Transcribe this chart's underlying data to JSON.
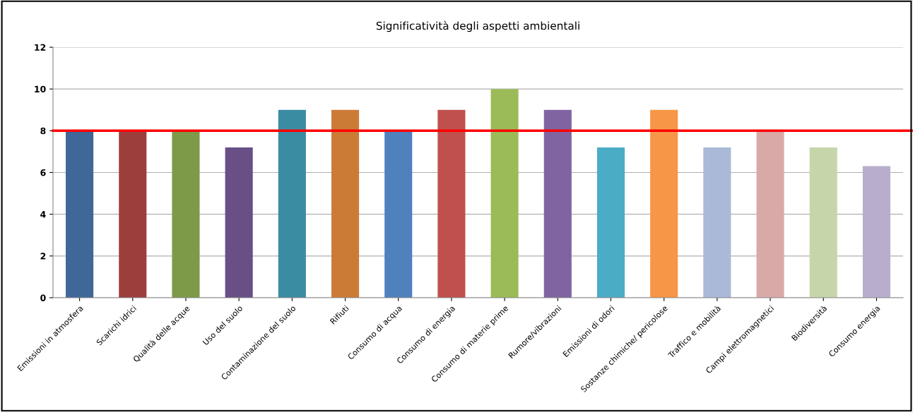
{
  "chart_data": {
    "type": "bar",
    "title": "Significatività degli aspetti ambientali",
    "categories": [
      "Emissioni in atmosfera",
      "Scarichi idrici",
      "Qualità delle acque",
      "Uso del suolo",
      "Contaminazione del suolo",
      "Rifiuti",
      "Consumo di acqua",
      "Consumo di energia",
      "Consumo di materie prime",
      "Rumore/vibrazioni",
      "Emissioni di odori",
      "Sostanze chimiche/ pericolose",
      "Traffico e mobilità",
      "Campi elettromagnetici",
      "Biodiversità",
      "Consumo energia"
    ],
    "values": [
      8,
      8,
      8,
      7.2,
      9,
      9,
      8,
      9,
      10,
      9,
      7.2,
      9,
      7.2,
      8,
      7.2,
      6.3
    ],
    "colors": [
      "#3f6797",
      "#9c3f3c",
      "#7d9a48",
      "#684f86",
      "#3a8ca3",
      "#cc7b37",
      "#4f81bd",
      "#c0504d",
      "#9bbb59",
      "#8064a2",
      "#4bacc6",
      "#f79646",
      "#a9b9d7",
      "#d9a9a8",
      "#c6d6aa",
      "#b8aecb"
    ],
    "ylim": [
      0,
      12
    ],
    "yticks": [
      0,
      2,
      4,
      6,
      8,
      10,
      12
    ],
    "grid": "y",
    "ref_lines": [
      {
        "axis": "y",
        "value": 8,
        "color": "#ff0000"
      }
    ]
  }
}
